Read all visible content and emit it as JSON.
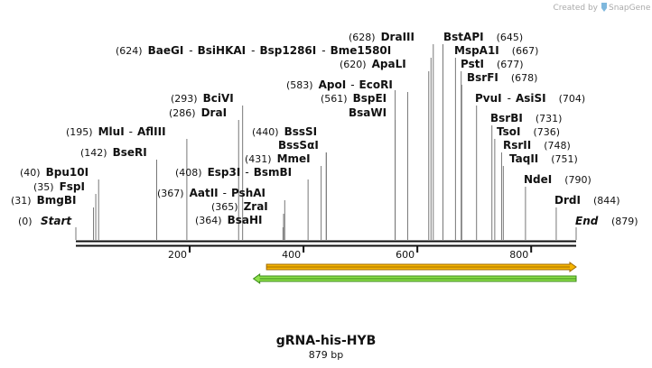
{
  "branding": {
    "prefix": "Created by",
    "name": "SnapGene",
    "icon": "snapgene-logo-icon"
  },
  "map": {
    "name": "gRNA-his-HYB",
    "length_label": "879 bp",
    "length": 879,
    "start_label": "Start",
    "end_label": "End",
    "start_pos_label": "(0)",
    "end_pos_label": "(879)",
    "ticks": [
      200,
      400,
      600,
      800
    ],
    "tick_labels": [
      "200",
      "400",
      "600",
      "800"
    ]
  },
  "features": [
    {
      "name": "feature-arrow-orange",
      "start": 335,
      "end": 879,
      "direction": "forward",
      "color": "#f5b400",
      "border": "#a06a00"
    },
    {
      "name": "feature-arrow-green",
      "start": 312,
      "end": 879,
      "direction": "reverse",
      "color": "#8ee04a",
      "border": "#3a8a1a"
    }
  ],
  "sites": [
    {
      "pos_label": "(31)",
      "names": [
        "BmgBI"
      ],
      "cut": 31
    },
    {
      "pos_label": "(35)",
      "names": [
        "FspI"
      ],
      "cut": 35
    },
    {
      "pos_label": "(40)",
      "names": [
        "Bpu10I"
      ],
      "cut": 40
    },
    {
      "pos_label": "(142)",
      "names": [
        "BseRI"
      ],
      "cut": 142
    },
    {
      "pos_label": "(195)",
      "names": [
        "MluI",
        "AflIII"
      ],
      "cut": 195
    },
    {
      "pos_label": "(286)",
      "names": [
        "DraI"
      ],
      "cut": 286
    },
    {
      "pos_label": "(293)",
      "names": [
        "BciVI"
      ],
      "cut": 293
    },
    {
      "pos_label": "(364)",
      "names": [
        "BsaHI"
      ],
      "cut": 364
    },
    {
      "pos_label": "(365)",
      "names": [
        "ZraI"
      ],
      "cut": 365
    },
    {
      "pos_label": "(367)",
      "names": [
        "AatII",
        "PshAI"
      ],
      "cut": 367
    },
    {
      "pos_label": "(408)",
      "names": [
        "Esp3I",
        "BsmBI"
      ],
      "cut": 408
    },
    {
      "pos_label": "(431)",
      "names": [
        "MmeI"
      ],
      "cut": 431
    },
    {
      "pos_label": "",
      "names": [
        "BssSαI"
      ],
      "cut": 440
    },
    {
      "pos_label": "(440)",
      "names": [
        "BssSI"
      ],
      "cut": 440
    },
    {
      "pos_label": "",
      "names": [
        "BsaWI"
      ],
      "cut": 561
    },
    {
      "pos_label": "(561)",
      "names": [
        "BspEI"
      ],
      "cut": 561
    },
    {
      "pos_label": "(583)",
      "names": [
        "ApoI",
        "EcoRI"
      ],
      "cut": 583
    },
    {
      "pos_label": "(620)",
      "names": [
        "ApaLI"
      ],
      "cut": 620
    },
    {
      "pos_label": "(624)",
      "names": [
        "BaeGI",
        "BsiHKAI",
        "Bsp1286I",
        "Bme1580I"
      ],
      "cut": 624
    },
    {
      "pos_label": "(628)",
      "names": [
        "DraIII"
      ],
      "cut": 628
    },
    {
      "pos_label": "(645)",
      "names": [
        "BstAPI"
      ],
      "cut": 645
    },
    {
      "pos_label": "(667)",
      "names": [
        "MspA1I"
      ],
      "cut": 667
    },
    {
      "pos_label": "(677)",
      "names": [
        "PstI"
      ],
      "cut": 677
    },
    {
      "pos_label": "(678)",
      "names": [
        "BsrFI"
      ],
      "cut": 678
    },
    {
      "pos_label": "(704)",
      "names": [
        "PvuI",
        "AsiSI"
      ],
      "cut": 704
    },
    {
      "pos_label": "(731)",
      "names": [
        "BsrBI"
      ],
      "cut": 731
    },
    {
      "pos_label": "(736)",
      "names": [
        "TsoI"
      ],
      "cut": 736
    },
    {
      "pos_label": "(748)",
      "names": [
        "RsrII"
      ],
      "cut": 748
    },
    {
      "pos_label": "(751)",
      "names": [
        "TaqII"
      ],
      "cut": 751
    },
    {
      "pos_label": "(790)",
      "names": [
        "NdeI"
      ],
      "cut": 790
    },
    {
      "pos_label": "(844)",
      "names": [
        "DrdI"
      ],
      "cut": 844
    }
  ]
}
